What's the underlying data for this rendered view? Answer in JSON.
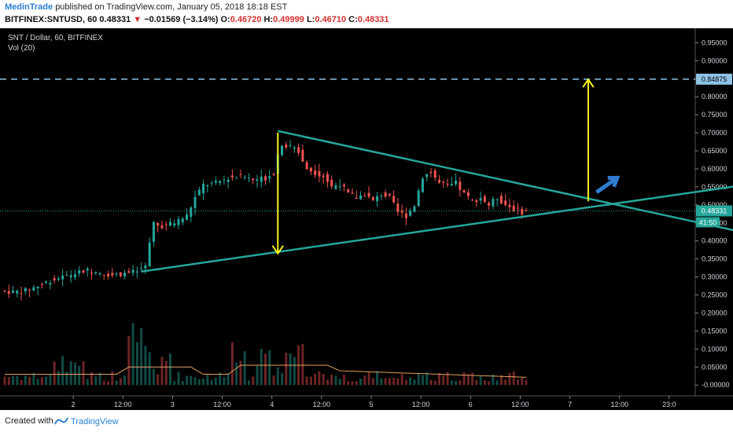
{
  "header": {
    "author": "MedinTrade",
    "published_text": "published on TradingView.com, January 05, 2018 18:18 EST",
    "symbol_line": "BITFINEX:SNTUSD, 60",
    "last": "0.48331",
    "change": "−0.01569 (−3.14%)",
    "open_label": "O:",
    "open": "0.46720",
    "high_label": "H:",
    "high": "0.49999",
    "low_label": "L:",
    "low": "0.46710",
    "close_label": "C:",
    "close": "0.48331"
  },
  "legend": {
    "title": "SNT / Dollar, 60, BITFINEX",
    "volume": "Vol (20)"
  },
  "footer": {
    "created_with": "Created with",
    "brand": "TradingView"
  },
  "colors": {
    "background": "#000000",
    "up": "#26a69a",
    "down": "#ef5350",
    "trendline": "#26a69a",
    "arrow": "#f5f51a",
    "breakout_arrow": "#2f7dd1",
    "target_line": "#8fc4e8",
    "axis_text": "#cfd6dd"
  },
  "chart_data": {
    "type": "candlestick",
    "y_axis": {
      "ylim": [
        -0.03,
        0.99
      ],
      "ticks": [
        "0.95000",
        "0.90000",
        "0.85000",
        "0.80000",
        "0.75000",
        "0.70000",
        "0.65000",
        "0.60000",
        "0.55000",
        "0.50000",
        "0.45000",
        "0.40000",
        "0.35000",
        "0.30000",
        "0.25000",
        "0.20000",
        "0.15000",
        "0.10000",
        "0.05000",
        "-0.00000"
      ],
      "tick_values": [
        0.95,
        0.9,
        0.85,
        0.8,
        0.75,
        0.7,
        0.65,
        0.6,
        0.55,
        0.5,
        0.45,
        0.4,
        0.35,
        0.3,
        0.25,
        0.2,
        0.15,
        0.1,
        0.05,
        0.0
      ]
    },
    "x_axis": {
      "ticks": [
        "2",
        "12:00",
        "3",
        "12:00",
        "4",
        "12:00",
        "5",
        "12:00",
        "6",
        "12:00",
        "7",
        "12:00",
        "23:0"
      ],
      "tick_hours": [
        12,
        24,
        36,
        48,
        60,
        72,
        84,
        96,
        108,
        120,
        132,
        144,
        156
      ]
    },
    "price_label": "0.48331",
    "price_level": 0.48331,
    "target_label": "0.84875",
    "target_level": 0.84875,
    "countdown_label": "41:50",
    "price_series": [
      {
        "h": 0,
        "p": 0.262
      },
      {
        "h": 3,
        "p": 0.258
      },
      {
        "h": 6,
        "p": 0.262
      },
      {
        "h": 9,
        "p": 0.275
      },
      {
        "h": 12,
        "p": 0.29
      },
      {
        "h": 15,
        "p": 0.3
      },
      {
        "h": 18,
        "p": 0.31
      },
      {
        "h": 21,
        "p": 0.318
      },
      {
        "h": 24,
        "p": 0.312
      },
      {
        "h": 27,
        "p": 0.305
      },
      {
        "h": 30,
        "p": 0.31
      },
      {
        "h": 33,
        "p": 0.315
      },
      {
        "h": 35,
        "p": 0.33
      },
      {
        "h": 36,
        "p": 0.39
      },
      {
        "h": 37,
        "p": 0.45
      },
      {
        "h": 39,
        "p": 0.44
      },
      {
        "h": 42,
        "p": 0.45
      },
      {
        "h": 45,
        "p": 0.47
      },
      {
        "h": 47,
        "p": 0.52
      },
      {
        "h": 49,
        "p": 0.555
      },
      {
        "h": 52,
        "p": 0.56
      },
      {
        "h": 55,
        "p": 0.575
      },
      {
        "h": 58,
        "p": 0.58
      },
      {
        "h": 61,
        "p": 0.57
      },
      {
        "h": 64,
        "p": 0.575
      },
      {
        "h": 66,
        "p": 0.59
      },
      {
        "h": 67,
        "p": 0.64
      },
      {
        "h": 68,
        "p": 0.67
      },
      {
        "h": 70,
        "p": 0.66
      },
      {
        "h": 72,
        "p": 0.65
      },
      {
        "h": 74,
        "p": 0.6
      },
      {
        "h": 76,
        "p": 0.59
      },
      {
        "h": 78,
        "p": 0.58
      },
      {
        "h": 80,
        "p": 0.55
      },
      {
        "h": 82,
        "p": 0.56
      },
      {
        "h": 84,
        "p": 0.53
      },
      {
        "h": 86,
        "p": 0.52
      },
      {
        "h": 88,
        "p": 0.53
      },
      {
        "h": 90,
        "p": 0.51
      },
      {
        "h": 92,
        "p": 0.53
      },
      {
        "h": 94,
        "p": 0.52
      },
      {
        "h": 96,
        "p": 0.48
      },
      {
        "h": 98,
        "p": 0.47
      },
      {
        "h": 100,
        "p": 0.5
      },
      {
        "h": 102,
        "p": 0.58
      },
      {
        "h": 104,
        "p": 0.59
      },
      {
        "h": 106,
        "p": 0.56
      },
      {
        "h": 108,
        "p": 0.55
      },
      {
        "h": 110,
        "p": 0.56
      },
      {
        "h": 112,
        "p": 0.53
      },
      {
        "h": 114,
        "p": 0.51
      },
      {
        "h": 116,
        "p": 0.52
      },
      {
        "h": 118,
        "p": 0.5
      },
      {
        "h": 120,
        "p": 0.52
      },
      {
        "h": 122,
        "p": 0.5
      },
      {
        "h": 124,
        "p": 0.49
      },
      {
        "h": 126,
        "p": 0.48
      },
      {
        "h": 127,
        "p": 0.483
      }
    ],
    "drawings": {
      "upper_trendline": [
        {
          "h": 66,
          "p": 0.705
        },
        {
          "h": 206,
          "p": 0.355
        }
      ],
      "lower_trendline": [
        {
          "h": 33,
          "p": 0.315
        },
        {
          "h": 206,
          "p": 0.6
        }
      ],
      "down_arrow": [
        {
          "h": 66,
          "p": 0.7
        },
        {
          "h": 66,
          "p": 0.365
        }
      ],
      "up_arrow": [
        {
          "h": 141,
          "p": 0.51
        },
        {
          "h": 141,
          "p": 0.848
        }
      ],
      "breakout_arrow": [
        {
          "h": 143,
          "p": 0.535
        },
        {
          "h": 148,
          "p": 0.575
        }
      ]
    }
  }
}
